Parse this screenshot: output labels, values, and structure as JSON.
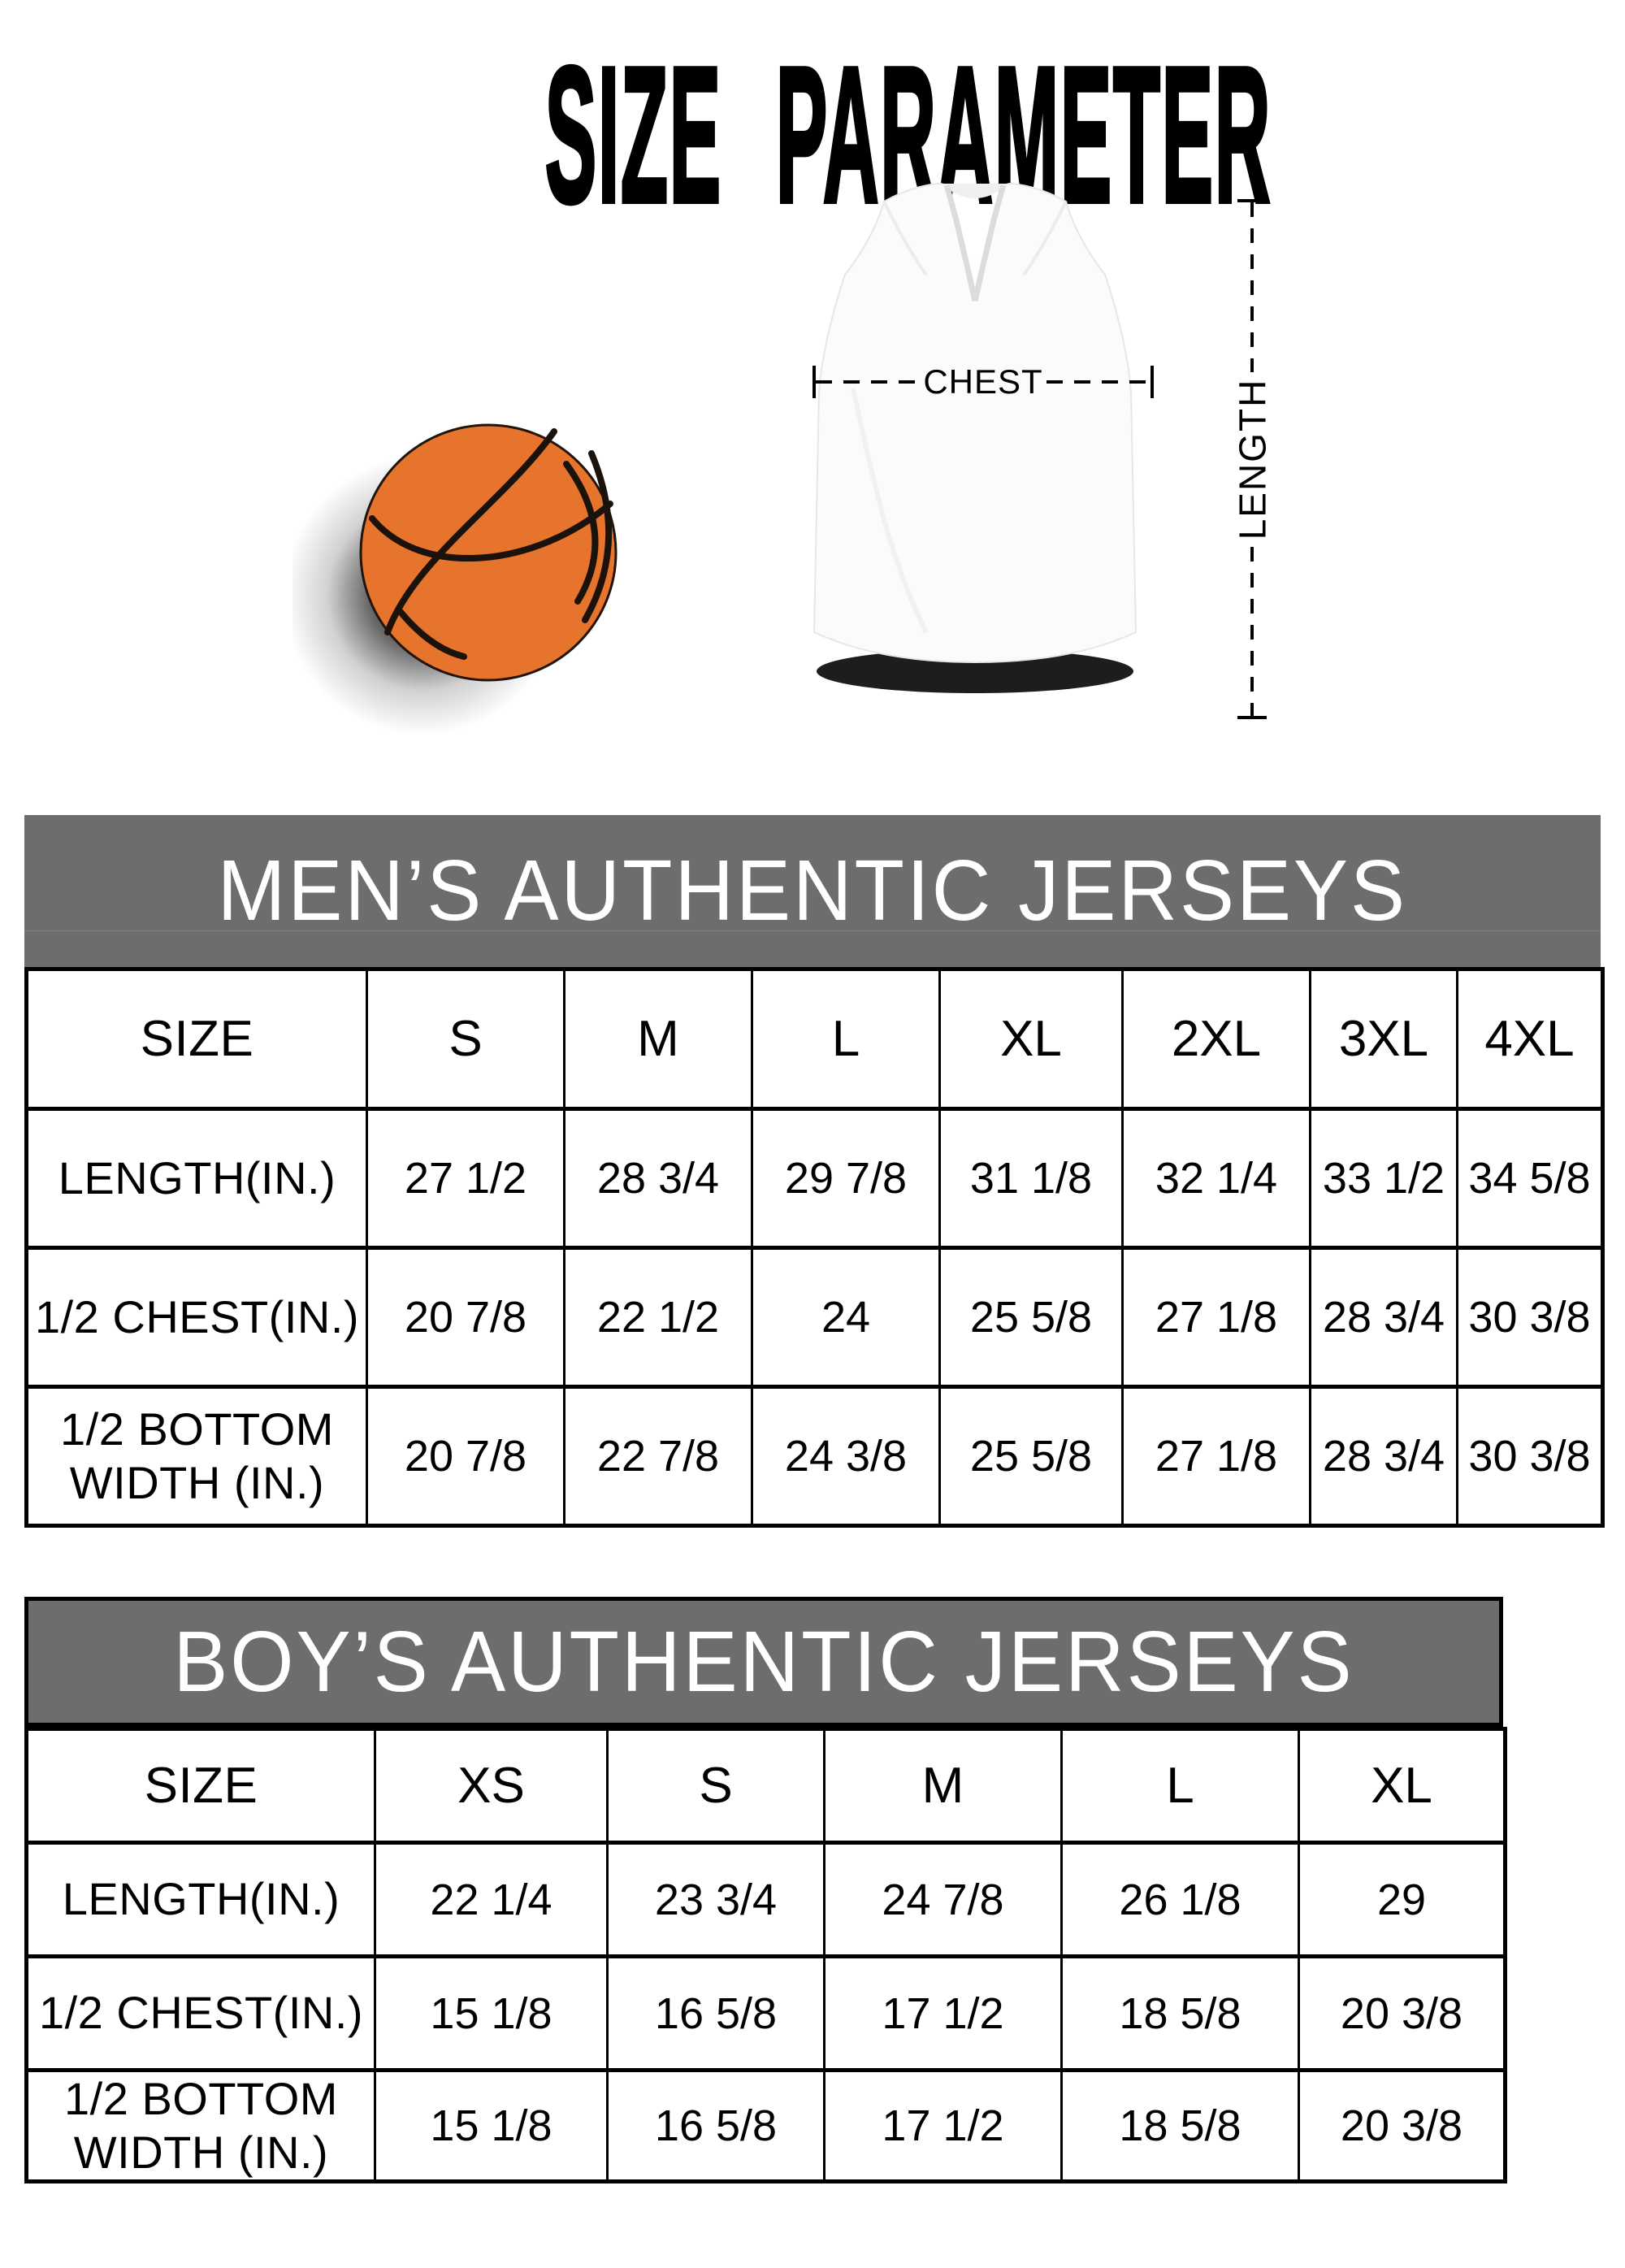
{
  "page_title": "SIZE PARAMETER",
  "diagram": {
    "chest_label": "CHEST",
    "length_label": "LENGTH"
  },
  "colors": {
    "table_header_gray": "#6d6d6d",
    "basketball_orange": "#e7742c",
    "seam_black": "#1a120b",
    "text_black": "#000000",
    "text_white": "#ffffff"
  },
  "mens_table": {
    "title": "MEN’S AUTHENTIC JERSEYS",
    "header": [
      "SIZE",
      "S",
      "M",
      "L",
      "XL",
      "2XL",
      "3XL",
      "4XL"
    ],
    "rows": [
      {
        "label": "LENGTH(IN.)",
        "values": [
          "27 1/2",
          "28 3/4",
          "29 7/8",
          "31 1/8",
          "32 1/4",
          "33 1/2",
          "34 5/8"
        ]
      },
      {
        "label": "1/2 CHEST(IN.)",
        "values": [
          "20 7/8",
          "22 1/2",
          "24",
          "25 5/8",
          "27 1/8",
          "28 3/4",
          "30 3/8"
        ]
      },
      {
        "label": "1/2 BOTTOM WIDTH (IN.)",
        "values": [
          "20 7/8",
          "22 7/8",
          "24 3/8",
          "25 5/8",
          "27 1/8",
          "28 3/4",
          "30 3/8"
        ]
      }
    ]
  },
  "boys_table": {
    "title": "BOY’S AUTHENTIC JERSEYS",
    "header": [
      "SIZE",
      "XS",
      "S",
      "M",
      "L",
      "XL"
    ],
    "rows": [
      {
        "label": "LENGTH(IN.)",
        "values": [
          "22 1/4",
          "23 3/4",
          "24 7/8",
          "26 1/8",
          "29"
        ]
      },
      {
        "label": "1/2 CHEST(IN.)",
        "values": [
          "15 1/8",
          "16 5/8",
          "17 1/2",
          "18 5/8",
          "20 3/8"
        ]
      },
      {
        "label": "1/2 BOTTOM WIDTH (IN.)",
        "values": [
          "15 1/8",
          "16 5/8",
          "17 1/2",
          "18 5/8",
          "20 3/8"
        ]
      }
    ]
  }
}
